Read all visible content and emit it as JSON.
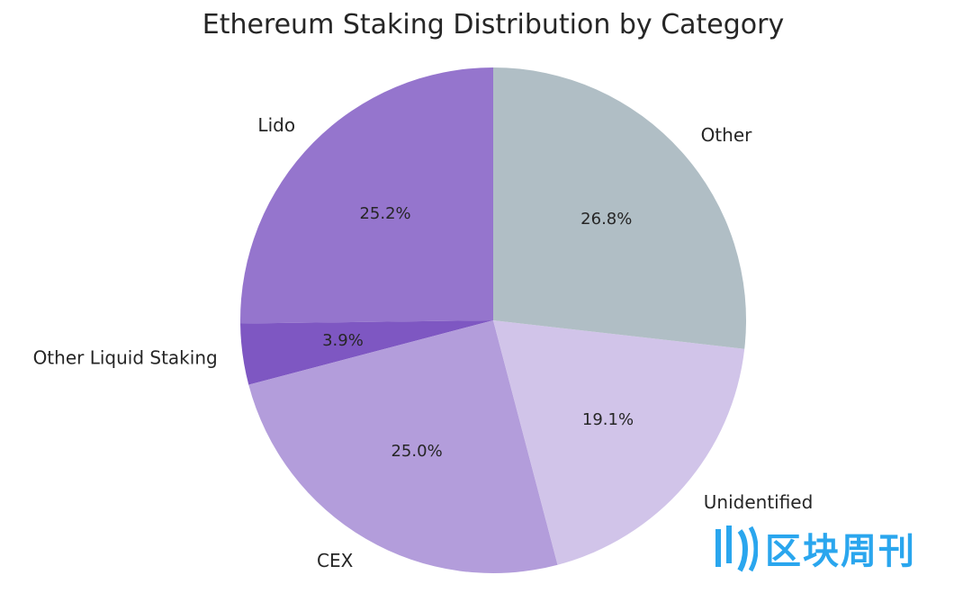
{
  "chart_data": {
    "type": "pie",
    "title": "Ethereum Staking Distribution by Category",
    "start_angle_deg": 90,
    "direction": "counterclockwise",
    "slices": [
      {
        "label": "Lido",
        "value": 25.2,
        "pct_text": "25.2%",
        "color": "#9575cd"
      },
      {
        "label": "Other Liquid Staking",
        "value": 3.9,
        "pct_text": "3.9%",
        "color": "#7e57c2"
      },
      {
        "label": "CEX",
        "value": 25.0,
        "pct_text": "25.0%",
        "color": "#b39ddb"
      },
      {
        "label": "Unidentified",
        "value": 19.1,
        "pct_text": "19.1%",
        "color": "#d1c4e9"
      },
      {
        "label": "Other",
        "value": 26.8,
        "pct_text": "26.8%",
        "color": "#b0bec5"
      }
    ]
  },
  "watermark": {
    "text": "区块周刊",
    "color": "#2aa6ee"
  }
}
